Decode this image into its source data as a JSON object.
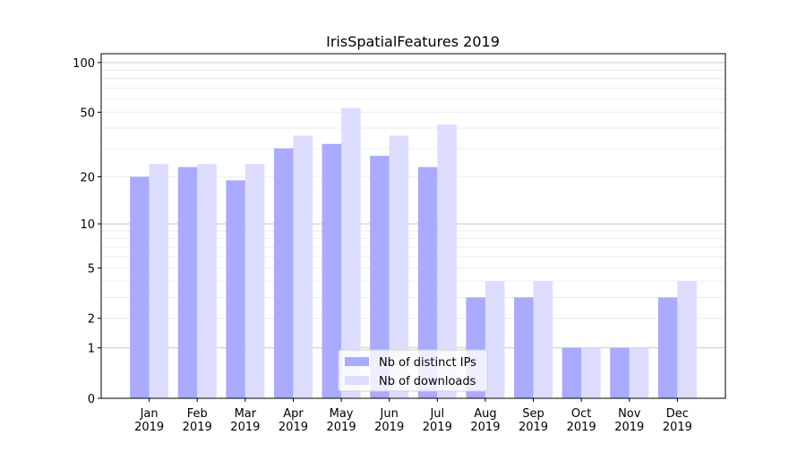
{
  "chart_data": {
    "type": "bar",
    "title": "IrisSpatialFeatures 2019",
    "xlabel": "",
    "ylabel": "",
    "yscale": "log10(1+y)",
    "ylim": [
      0,
      113
    ],
    "yticks": [
      0,
      1,
      2,
      5,
      10,
      20,
      50,
      100
    ],
    "ytick_labels": [
      "0",
      "1",
      "2",
      "5",
      "10",
      "20",
      "50",
      "100"
    ],
    "categories": [
      "Jan\n2019",
      "Feb\n2019",
      "Mar\n2019",
      "Apr\n2019",
      "May\n2019",
      "Jun\n2019",
      "Jul\n2019",
      "Aug\n2019",
      "Sep\n2019",
      "Oct\n2019",
      "Nov\n2019",
      "Dec\n2019"
    ],
    "category_lines": [
      [
        "Jan",
        "2019"
      ],
      [
        "Feb",
        "2019"
      ],
      [
        "Mar",
        "2019"
      ],
      [
        "Apr",
        "2019"
      ],
      [
        "May",
        "2019"
      ],
      [
        "Jun",
        "2019"
      ],
      [
        "Jul",
        "2019"
      ],
      [
        "Aug",
        "2019"
      ],
      [
        "Sep",
        "2019"
      ],
      [
        "Oct",
        "2019"
      ],
      [
        "Nov",
        "2019"
      ],
      [
        "Dec",
        "2019"
      ]
    ],
    "series": [
      {
        "name": "Nb of distinct IPs",
        "color": "#aaaaff",
        "values": [
          20,
          23,
          19,
          30,
          32,
          27,
          23,
          3,
          3,
          1,
          1,
          3
        ]
      },
      {
        "name": "Nb of downloads",
        "color": "#ddddff",
        "values": [
          24,
          24,
          24,
          36,
          53,
          36,
          42,
          4,
          4,
          1,
          1,
          4
        ]
      }
    ],
    "grid": true,
    "legend": "bottom-center"
  }
}
